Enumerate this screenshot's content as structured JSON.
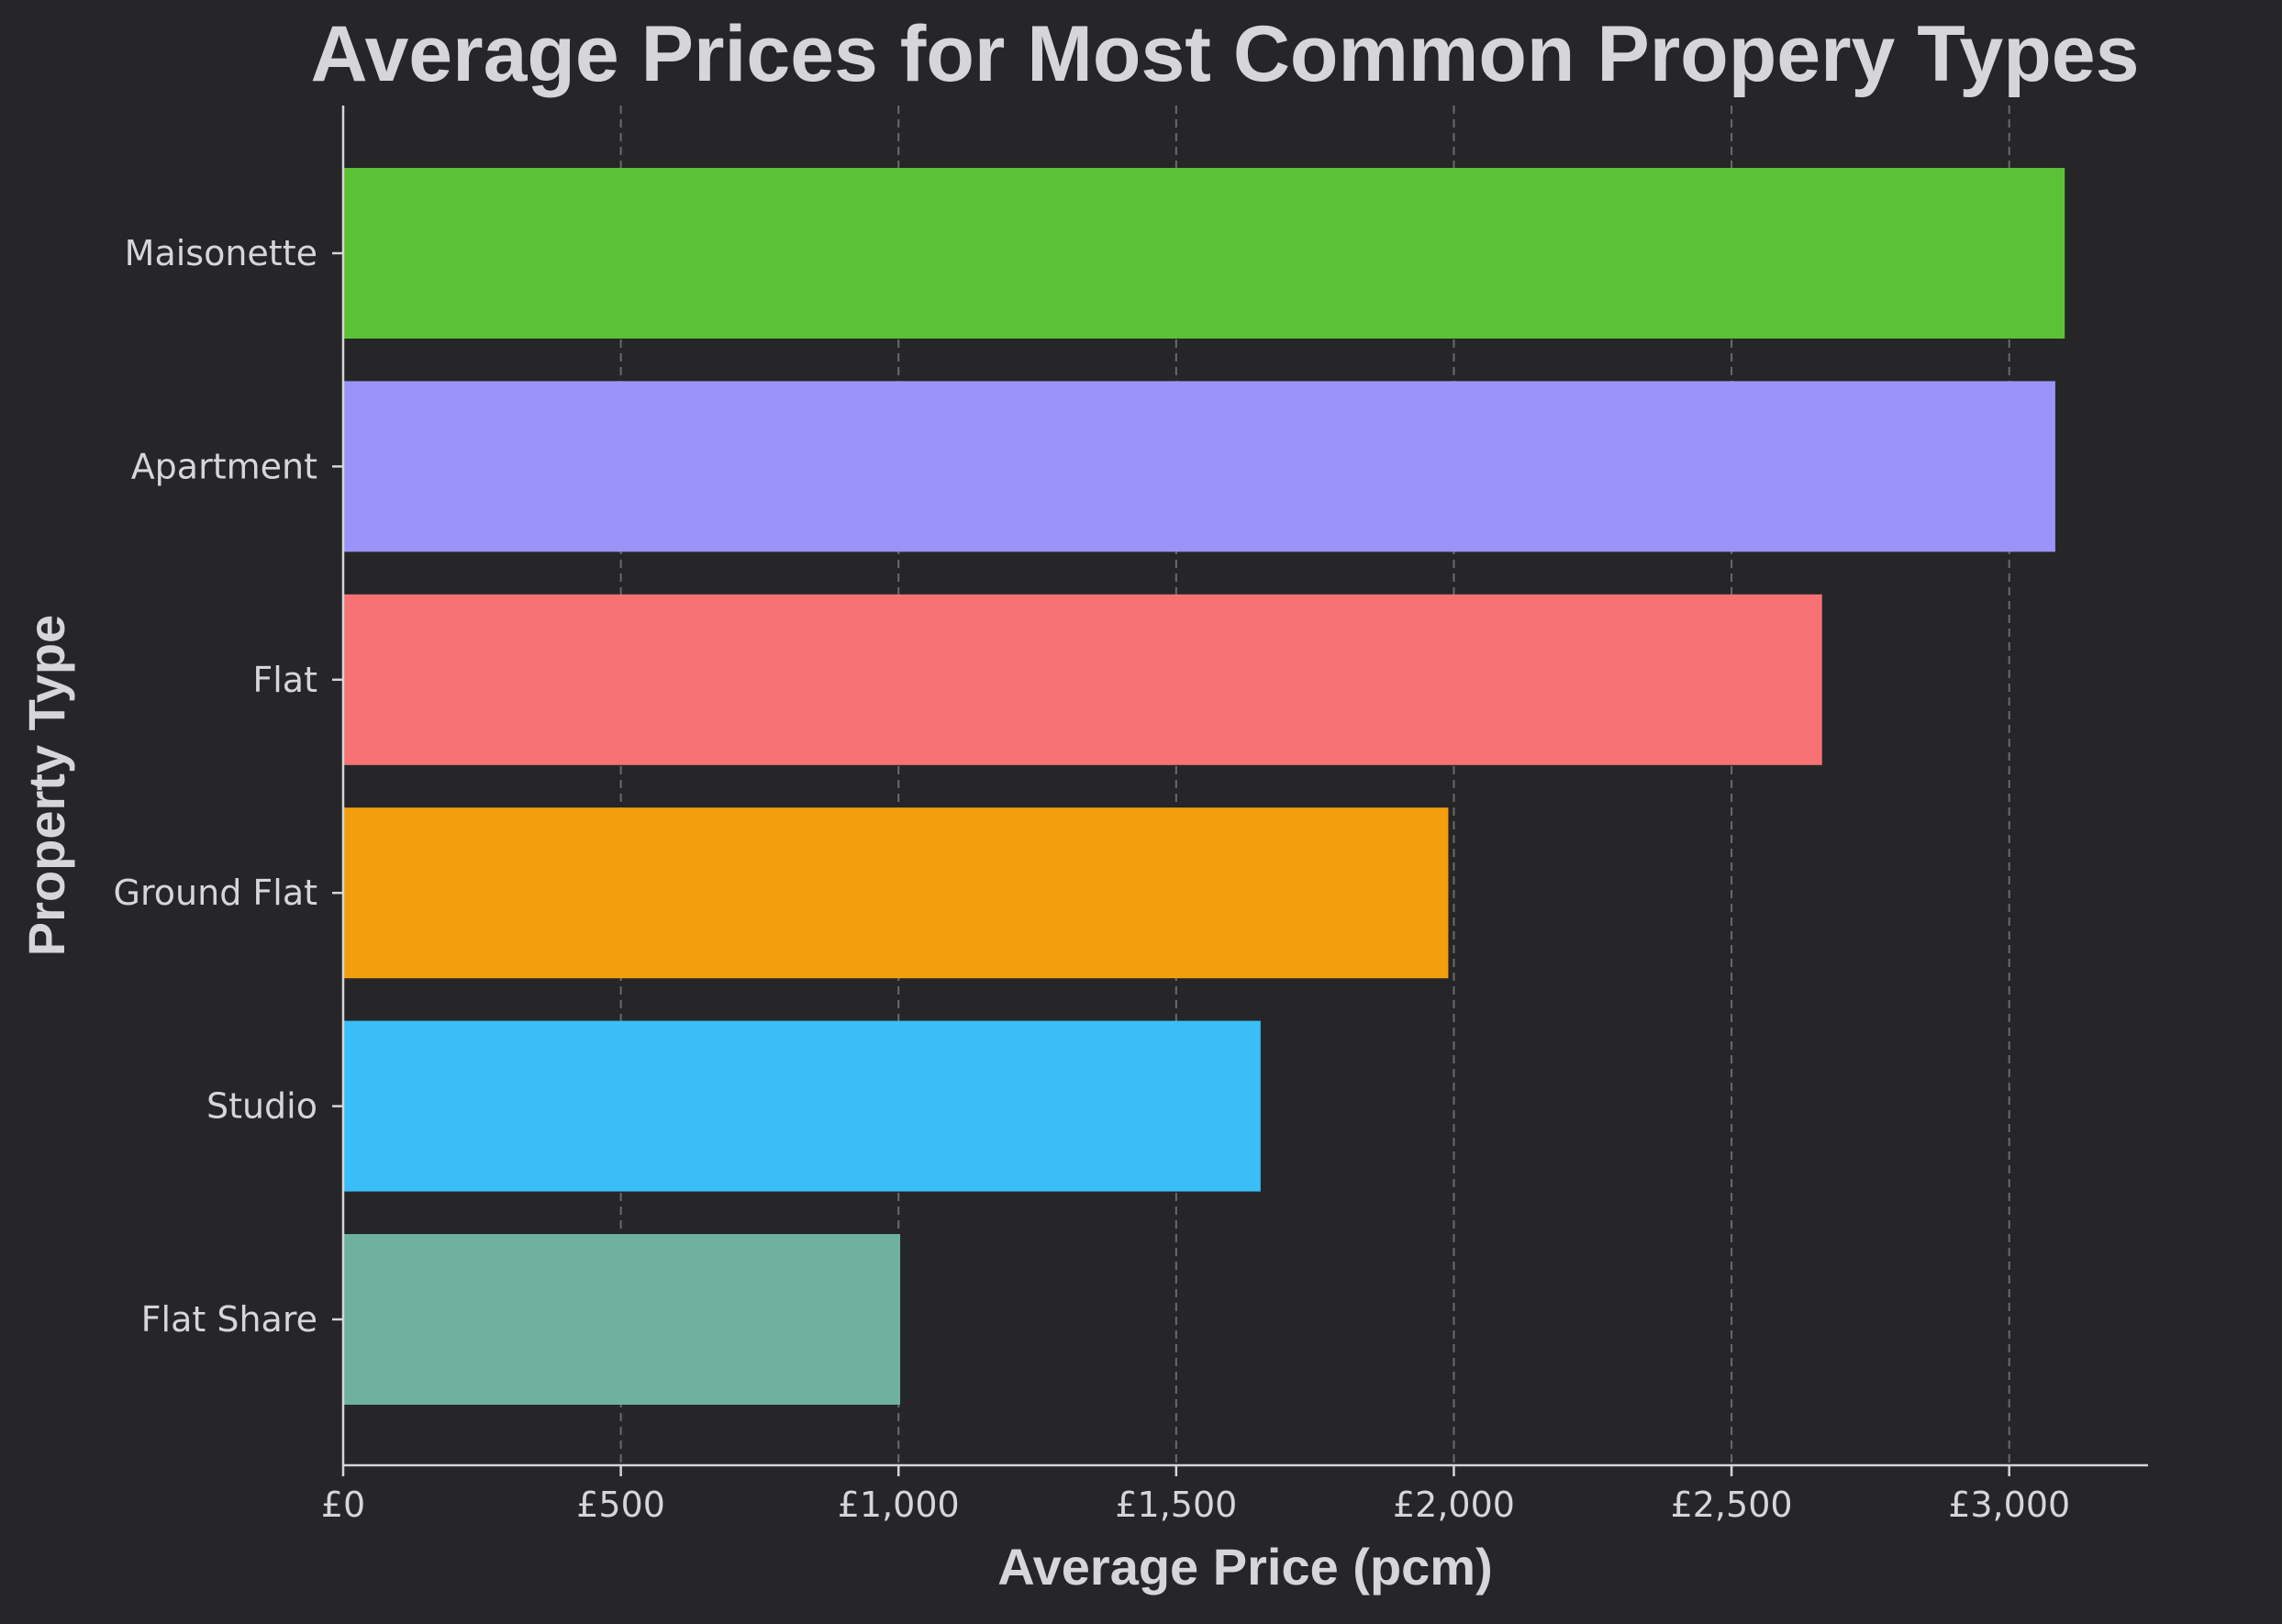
{
  "chart_data": {
    "type": "bar",
    "orientation": "horizontal",
    "title": "Average Prices for Most Common Propery Types",
    "xlabel": "Average Price (pcm)",
    "ylabel": "Property Type",
    "categories": [
      "Maisonette",
      "Apartment",
      "Flat",
      "Ground Flat",
      "Studio",
      "Flat Share"
    ],
    "values": [
      3100,
      3083,
      2663,
      1990,
      1652,
      1003
    ],
    "colors": [
      "#5bc236",
      "#9a94f9",
      "#f77274",
      "#f39f0d",
      "#3abef8",
      "#6eb19d"
    ],
    "xlim": [
      0,
      3250
    ],
    "xticks": [
      0,
      500,
      1000,
      1500,
      2000,
      2500,
      3000
    ],
    "xtick_labels": [
      "£0",
      "£500",
      "£1,000",
      "£1,500",
      "£2,000",
      "£2,500",
      "£3,000"
    ],
    "grid": "x-dashed"
  }
}
